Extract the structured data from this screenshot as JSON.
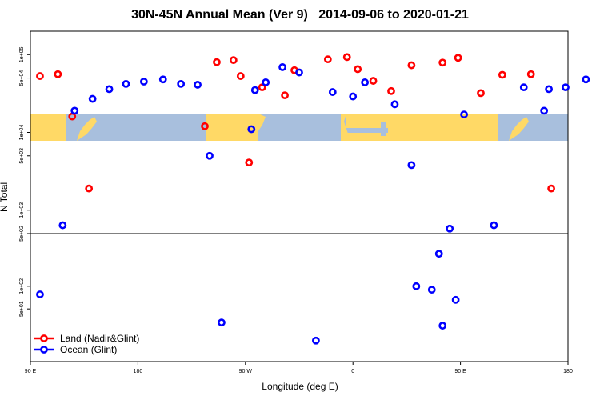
{
  "chart_data": {
    "type": "scatter",
    "title": "30N-45N Annual Mean (Ver 9)   2014-09-06 to 2020-01-21",
    "xlabel": "Longitude (deg E)",
    "ylabel": "N Total",
    "x_ticks": [
      {
        "value": -90,
        "label": "90 E"
      },
      {
        "value": 0,
        "label": "180"
      },
      {
        "value": 90,
        "label": "90 W"
      },
      {
        "value": 180,
        "label": "0"
      },
      {
        "value": 270,
        "label": "90 E"
      },
      {
        "value": 360,
        "label": "180"
      }
    ],
    "xlim": [
      -90,
      360
    ],
    "y_scale": "log",
    "upper_panel": {
      "ylim": [
        500,
        200000
      ],
      "y_ticks": [
        {
          "value": 100000,
          "label": "1e+05"
        },
        {
          "value": 50000,
          "label": "5e+04"
        },
        {
          "value": 10000,
          "label": "1e+04"
        },
        {
          "value": 5000,
          "label": "5e+03"
        },
        {
          "value": 1000,
          "label": "1e+03"
        },
        {
          "value": 500,
          "label": "5e+02"
        }
      ]
    },
    "lower_panel": {
      "ylim": [
        10,
        500
      ],
      "y_ticks": [
        {
          "value": 100,
          "label": "1e+02"
        },
        {
          "value": 50,
          "label": "5e+01"
        }
      ]
    },
    "series": [
      {
        "name": "Land (Nadir&Glint)",
        "color": "#ff0000",
        "x": [
          -82,
          -67,
          -55,
          -41,
          56,
          66,
          80,
          86,
          93,
          104,
          123,
          131,
          159,
          175,
          184,
          197,
          212,
          229,
          255,
          268,
          287,
          305,
          329,
          346
        ],
        "y": [
          53000,
          56000,
          16000,
          1900,
          12000,
          80000,
          85000,
          53000,
          4100,
          38000,
          30000,
          63000,
          87000,
          93000,
          65000,
          46000,
          34000,
          73000,
          79000,
          91000,
          32000,
          55000,
          56000,
          1900
        ]
      },
      {
        "name": "Ocean (Glint)",
        "color": "#0000ff",
        "x": [
          -82,
          -63,
          -53,
          -38,
          -24,
          -10,
          5,
          21,
          36,
          50,
          60,
          70,
          95,
          98,
          107,
          121,
          135,
          149,
          163,
          180,
          190,
          215,
          229,
          233,
          246,
          252,
          255,
          261,
          266,
          273,
          298,
          323,
          340,
          344,
          358,
          375
        ],
        "y": [
          78,
          640,
          19000,
          27000,
          36000,
          42000,
          45000,
          48000,
          42000,
          41000,
          5000,
          33,
          11000,
          35000,
          44000,
          69000,
          59000,
          19,
          33000,
          29000,
          44000,
          23000,
          3800,
          100,
          90,
          270,
          30,
          580,
          66,
          17000,
          640,
          38000,
          19000,
          36000,
          38000,
          48000
        ]
      }
    ],
    "background_map": "world-map-strip",
    "legend": {
      "placement": "bottom-left"
    },
    "grid": false
  }
}
